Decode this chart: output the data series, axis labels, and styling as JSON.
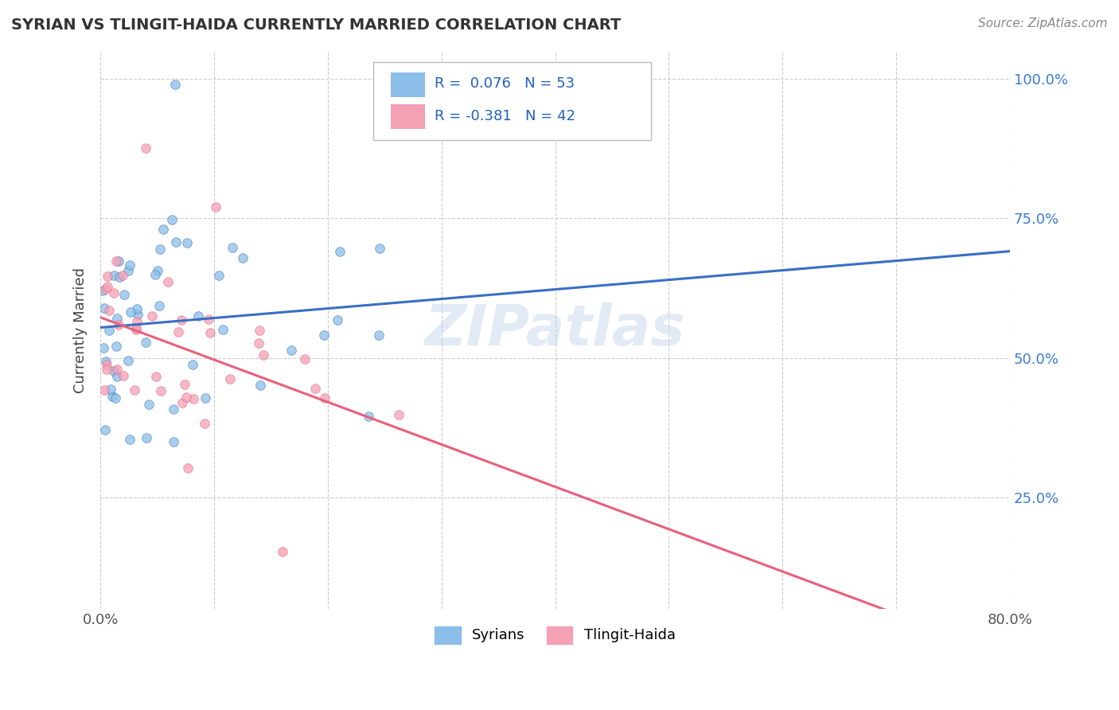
{
  "title": "SYRIAN VS TLINGIT-HAIDA CURRENTLY MARRIED CORRELATION CHART",
  "source": "Source: ZipAtlas.com",
  "ylabel": "Currently Married",
  "xlim": [
    0.0,
    0.8
  ],
  "ylim": [
    0.05,
    1.05
  ],
  "x_ticks": [
    0.0,
    0.1,
    0.2,
    0.3,
    0.4,
    0.5,
    0.6,
    0.7,
    0.8
  ],
  "x_tick_labels": [
    "0.0%",
    "",
    "",
    "",
    "",
    "",
    "",
    "",
    "80.0%"
  ],
  "y_ticks": [
    0.25,
    0.5,
    0.75,
    1.0
  ],
  "y_tick_labels": [
    "25.0%",
    "50.0%",
    "75.0%",
    "100.0%"
  ],
  "syrian_color": "#8bbee8",
  "tlingit_color": "#f4a0b5",
  "syrian_line_color": "#3a6fc4",
  "tlingit_line_color": "#e8607a",
  "r_syrian": 0.076,
  "n_syrian": 53,
  "r_tlingit": -0.381,
  "n_tlingit": 42,
  "legend_label_1": "Syrians",
  "legend_label_2": "Tlingit-Haida",
  "watermark": "ZIPatlas",
  "title_color": "#333333",
  "source_color": "#888888",
  "ylabel_color": "#444444",
  "tick_color_x": "#555555",
  "tick_color_y": "#3a7bd5",
  "grid_color": "#cccccc",
  "legend_r_color": "#2060c0"
}
